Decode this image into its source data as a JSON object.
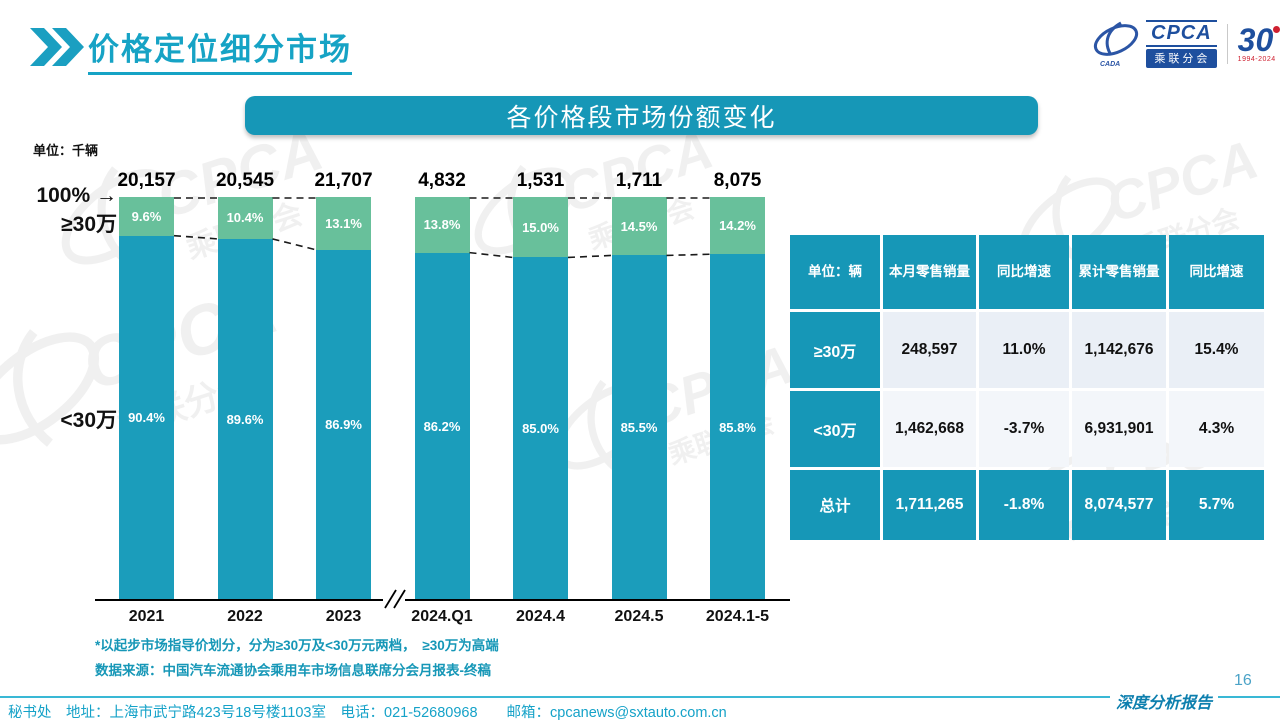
{
  "header": {
    "title": "价格定位细分市场",
    "logo": {
      "name": "CPCA",
      "subtitle": "乘联分会",
      "org_small": "CADA",
      "anniversary": "30",
      "years": "1994-2024"
    }
  },
  "banner": {
    "title": "各价格段市场份额变化"
  },
  "chart": {
    "unit_label": "单位：千辆",
    "top_axis_label": "100%",
    "high_label": "≥30万",
    "low_label": "<30万"
  },
  "icons": {
    "arrow_right": "→"
  },
  "chart_data": {
    "type": "bar",
    "stacked": true,
    "percent_axis": true,
    "unit": "千辆",
    "title": "各价格段市场份额变化",
    "categories": [
      "2021",
      "2022",
      "2023",
      "2024.Q1",
      "2024.4",
      "2024.5",
      "2024.1-5"
    ],
    "totals": [
      "20,157",
      "20,545",
      "21,707",
      "4,832",
      "1,531",
      "1,711",
      "8,075"
    ],
    "series": [
      {
        "name": "≥30万",
        "values": [
          9.6,
          10.4,
          13.1,
          13.8,
          15.0,
          14.5,
          14.2
        ],
        "labels": [
          "9.6%",
          "10.4%",
          "13.1%",
          "13.8%",
          "15.0%",
          "14.5%",
          "14.2%"
        ],
        "color": "#68c09b"
      },
      {
        "name": "<30万",
        "values": [
          90.4,
          89.6,
          86.9,
          86.2,
          85.0,
          85.5,
          85.8
        ],
        "labels": [
          "90.4%",
          "89.6%",
          "86.9%",
          "86.2%",
          "85.0%",
          "85.5%",
          "85.8%"
        ],
        "color": "#1b9dbb"
      }
    ],
    "ylim": [
      0,
      100
    ],
    "axis_break_after": "2023"
  },
  "table": {
    "headers": [
      "单位：辆",
      "本月零售销量",
      "同比增速",
      "累计零售销量",
      "同比增速"
    ],
    "rows": [
      {
        "label": "≥30万",
        "cells": [
          "248,597",
          "11.0%",
          "1,142,676",
          "15.4%"
        ],
        "total": false
      },
      {
        "label": "<30万",
        "cells": [
          "1,462,668",
          "-3.7%",
          "6,931,901",
          "4.3%"
        ],
        "total": false
      },
      {
        "label": "总计",
        "cells": [
          "1,711,265",
          "-1.8%",
          "8,074,577",
          "5.7%"
        ],
        "total": true
      }
    ]
  },
  "footnotes": [
    "*以起步市场指导价划分，分为≥30万及<30万元两档，　≥30万为高端",
    "数据来源：中国汽车流通协会乘用车市场信息联席分会月报表-终稿"
  ],
  "footer": {
    "page_number": "16",
    "report_label": "深度分析报告",
    "contact": "秘书处　地址：上海市武宁路423号18号楼1103室　电话：021-52680968　　邮箱：cpcanews@sxtauto.com.cn"
  },
  "watermark": {
    "text": "CPCA",
    "subtext": "乘联分会"
  },
  "colors": {
    "teal_bar": "#1b9dbb",
    "green_bar": "#68c09b",
    "banner_bg": "#1697b7",
    "title_text": "#16a3c5",
    "note_text": "#1697b7",
    "table_cell_bg": "#eaeff6",
    "logo_blue": "#1e4f9e",
    "logo_red": "#cf2030"
  }
}
